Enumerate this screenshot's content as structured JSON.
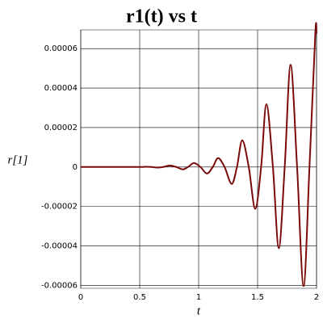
{
  "chart_data": {
    "type": "line",
    "title": "r1(t) vs t",
    "x_label": "t",
    "y_label": "r[1]",
    "x": [
      0,
      0.3,
      0.5,
      0.55,
      0.6,
      0.65,
      0.7,
      0.755,
      0.81,
      0.865,
      0.91,
      0.96,
      1.015,
      1.07,
      1.12,
      1.165,
      1.22,
      1.28,
      1.325,
      1.37,
      1.425,
      1.48,
      1.53,
      1.575,
      1.63,
      1.68,
      1.73,
      1.78,
      1.835,
      1.89,
      1.94,
      1.99,
      2.0
    ],
    "values": [
      0,
      0,
      0,
      1e-07,
      0,
      -3e-07,
      0,
      7e-07,
      0,
      -1.2e-06,
      0,
      2e-06,
      0,
      -3.3e-06,
      0,
      4.5e-06,
      0,
      -8.6e-06,
      0,
      1.35e-05,
      0,
      -2.12e-05,
      0,
      3.18e-05,
      0,
      -4.12e-05,
      0,
      5.18e-05,
      0,
      -6.04e-05,
      0,
      6.82e-05,
      6.75e-05
    ],
    "color": "#7a0a0a",
    "xlim": [
      0,
      2
    ],
    "xticks": [
      0,
      0.5,
      1,
      1.5,
      2
    ],
    "ylim": [
      -6.15e-05,
      6.95e-05
    ],
    "yticks": [
      -6e-05,
      -4e-05,
      -2e-05,
      0,
      2e-05,
      4e-05,
      6e-05
    ],
    "grid": true
  }
}
